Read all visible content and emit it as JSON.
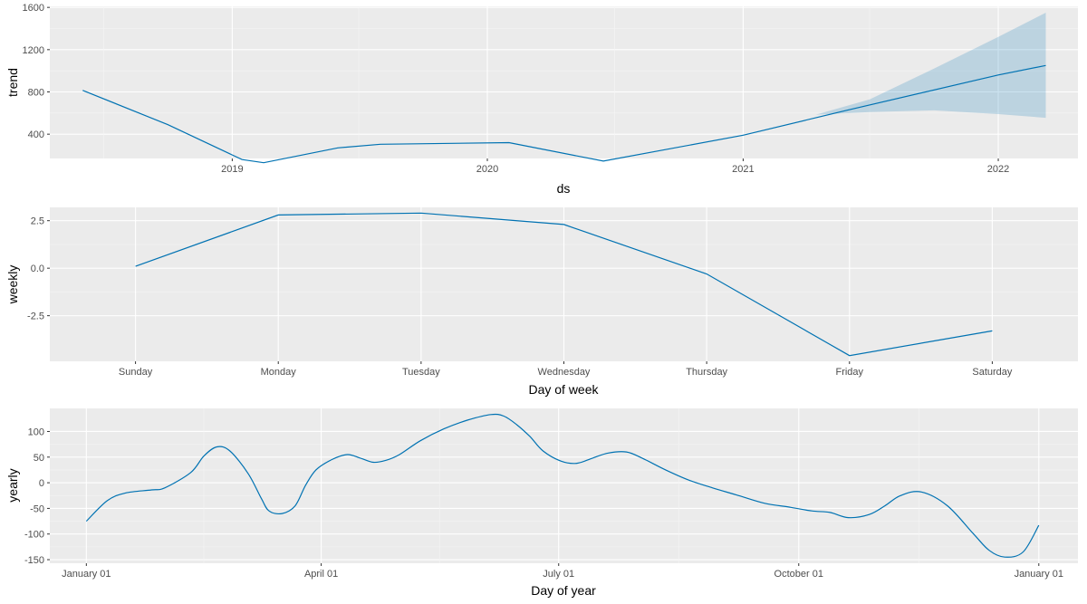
{
  "chart_data": [
    {
      "type": "area",
      "xlabel": "ds",
      "ylabel": "trend",
      "x_axis_kind": "time",
      "xlim": [
        "2018-04-15",
        "2022-04-25"
      ],
      "ylim": [
        170,
        1610
      ],
      "yticks": [
        400,
        800,
        1200,
        1600
      ],
      "xticks": [
        "2019-01-01",
        "2020-01-01",
        "2021-01-01",
        "2022-01-01"
      ],
      "xtick_labels": [
        "2019",
        "2020",
        "2021",
        "2022"
      ],
      "grid": true,
      "series": [
        {
          "x": [
            "2018-06-01",
            "2018-10-01",
            "2019-01-15",
            "2019-02-15",
            "2019-06-01",
            "2019-08-01",
            "2020-02-01",
            "2020-06-15",
            "2021-01-01",
            "2021-06-01",
            "2022-01-01",
            "2022-03-10"
          ],
          "y": [
            815,
            490,
            160,
            130,
            270,
            305,
            320,
            145,
            390,
            630,
            960,
            1050
          ]
        }
      ],
      "uncertainty_band": {
        "x": [
          "2021-04-15",
          "2021-07-01",
          "2021-10-01",
          "2022-01-01",
          "2022-03-10"
        ],
        "lower": [
          585,
          610,
          625,
          590,
          555
        ],
        "upper": [
          585,
          730,
          1020,
          1320,
          1550
        ]
      }
    },
    {
      "type": "line",
      "xlabel": "Day of week",
      "ylabel": "weekly",
      "categories": [
        "Sunday",
        "Monday",
        "Tuesday",
        "Wednesday",
        "Thursday",
        "Friday",
        "Saturday"
      ],
      "values": [
        0.1,
        2.8,
        2.9,
        2.3,
        -0.3,
        -4.6,
        -3.3
      ],
      "ylim": [
        -4.9,
        3.2
      ],
      "yticks": [
        2.5,
        0.0,
        -2.5
      ],
      "ytick_labels": [
        "2.5",
        "0.0",
        "-2.5"
      ],
      "grid": true
    },
    {
      "type": "line",
      "xlabel": "Day of year",
      "ylabel": "yearly",
      "x_axis_kind": "day-of-year",
      "xlim": [
        -14,
        380
      ],
      "ylim": [
        -157,
        145
      ],
      "yticks": [
        100,
        50,
        0,
        -50,
        -100,
        -150
      ],
      "xticks": [
        0,
        90,
        181,
        273,
        365
      ],
      "xtick_labels": [
        "January 01",
        "April 01",
        "July 01",
        "October 01",
        "January 01"
      ],
      "grid": true,
      "series": [
        {
          "x": [
            0,
            8,
            15,
            25,
            30,
            40,
            45,
            50,
            55,
            62,
            67,
            70,
            75,
            80,
            84,
            88,
            94,
            100,
            105,
            110,
            115,
            120,
            128,
            137,
            146,
            155,
            160,
            165,
            170,
            175,
            182,
            188,
            194,
            200,
            207,
            213,
            222,
            231,
            240,
            250,
            260,
            270,
            278,
            285,
            292,
            300,
            306,
            312,
            320,
            330,
            340,
            346,
            352,
            359,
            365
          ],
          "y": [
            -75,
            -35,
            -20,
            -14,
            -10,
            20,
            52,
            70,
            62,
            18,
            -30,
            -55,
            -60,
            -45,
            -5,
            25,
            45,
            55,
            48,
            40,
            44,
            55,
            82,
            105,
            122,
            133,
            130,
            113,
            90,
            62,
            42,
            38,
            48,
            58,
            60,
            48,
            25,
            5,
            -10,
            -25,
            -40,
            -48,
            -55,
            -58,
            -68,
            -62,
            -45,
            -25,
            -18,
            -45,
            -100,
            -132,
            -145,
            -135,
            -83
          ]
        }
      ]
    }
  ]
}
